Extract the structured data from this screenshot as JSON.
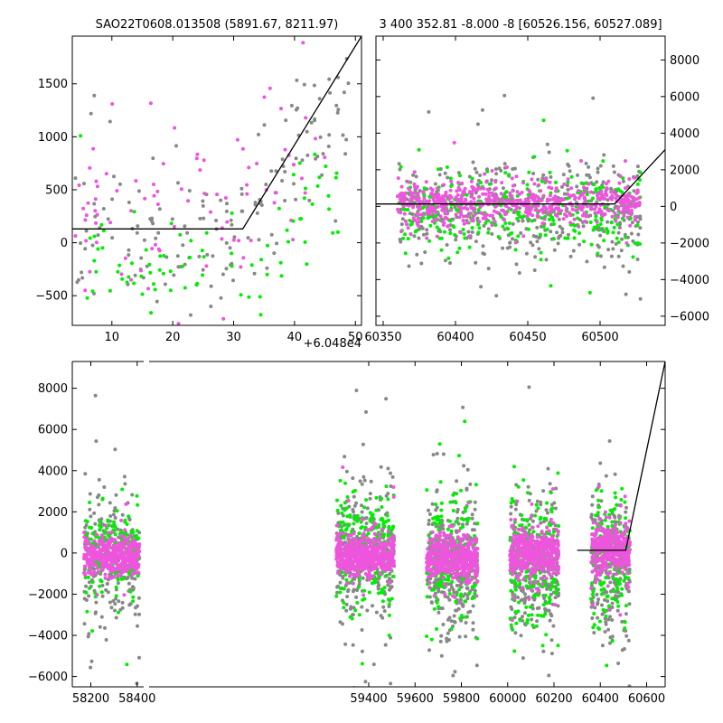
{
  "colors": {
    "gray": "#888888",
    "green": "#00ee00",
    "magenta": "#ee55dd",
    "line": "#000000"
  },
  "chart_data": [
    {
      "id": "top_left",
      "type": "scatter",
      "title": "SAO22T0608.013508 (5891.67, 8211.97)",
      "offset_label": "+6.048e4",
      "xlim": [
        3.5,
        51.0
      ],
      "ylim": [
        -780,
        1950
      ],
      "xticks": [
        10,
        20,
        30,
        40,
        50
      ],
      "yticks": [
        -500,
        0,
        500,
        1000,
        1500
      ],
      "tick_side": "left",
      "model_line": {
        "x": [
          3.5,
          31.5,
          51.0
        ],
        "y": [
          130,
          130,
          1950
        ]
      },
      "clouds": [
        {
          "name": "gray",
          "color_key": "gray",
          "n": 160,
          "seed": 11,
          "xrange": [
            4,
            49
          ],
          "ybase": 180,
          "spread": 340,
          "trend_start": 31.5,
          "trend_slope": 70
        },
        {
          "name": "magenta",
          "color_key": "magenta",
          "n": 90,
          "seed": 23,
          "xrange": [
            4,
            48
          ],
          "ybase": 280,
          "spread": 420,
          "trend_start": 31.5,
          "trend_slope": 60
        },
        {
          "name": "green",
          "color_key": "green",
          "n": 85,
          "seed": 37,
          "xrange": [
            4,
            48
          ],
          "ybase": -250,
          "spread": 260,
          "trend_start": 31.5,
          "trend_slope": 50
        }
      ]
    },
    {
      "id": "top_right",
      "type": "scatter",
      "title": "3 400 352.81 -8.000 -8 [60526.156, 60527.089]",
      "xlim": [
        60345,
        60545
      ],
      "ylim": [
        -6500,
        9300
      ],
      "xticks": [
        60350,
        60400,
        60450,
        60500
      ],
      "yticks": [
        -6000,
        -4000,
        -2000,
        0,
        2000,
        4000,
        6000,
        8000
      ],
      "tick_side": "right",
      "model_line": {
        "x": [
          60345,
          60510,
          60545
        ],
        "y": [
          130,
          130,
          3100
        ]
      },
      "clouds": [
        {
          "name": "gray",
          "color_key": "gray",
          "n": 420,
          "seed": 41,
          "xrange": [
            60360,
            60528
          ],
          "ybase": -300,
          "spread": 1400,
          "trend_start": 60510,
          "trend_slope": 0
        },
        {
          "name": "green",
          "color_key": "green",
          "n": 330,
          "seed": 53,
          "xrange": [
            60360,
            60528
          ],
          "ybase": -200,
          "spread": 1100,
          "trend_start": 60510,
          "trend_slope": 0
        },
        {
          "name": "magenta",
          "color_key": "magenta",
          "n": 620,
          "seed": 67,
          "xrange": [
            60360,
            60528
          ],
          "ybase": 150,
          "spread": 520,
          "trend_start": 60510,
          "trend_slope": 0
        }
      ]
    },
    {
      "id": "bottom",
      "type": "scatter",
      "xlim": [
        58120,
        60680
      ],
      "ylim": [
        -6500,
        9300
      ],
      "xticks": [
        58200,
        58400,
        59400,
        59600,
        59800,
        60000,
        60200,
        60400,
        60600
      ],
      "yticks": [
        -6000,
        -4000,
        -2000,
        0,
        2000,
        4000,
        6000,
        8000
      ],
      "tick_side": "left",
      "axis_gap": [
        58440,
        58800
      ],
      "model_line": {
        "x": [
          60300,
          60510,
          60680
        ],
        "y": [
          130,
          130,
          9300
        ]
      },
      "clouds": [
        {
          "name": "gray-1",
          "color_key": "gray",
          "n": 240,
          "seed": 101,
          "xrange": [
            58170,
            58410
          ],
          "ybase": -300,
          "spread": 1500,
          "trend_start": 99999,
          "trend_slope": 0
        },
        {
          "name": "green-1",
          "color_key": "green",
          "n": 180,
          "seed": 103,
          "xrange": [
            58170,
            58410
          ],
          "ybase": 100,
          "spread": 1100,
          "trend_start": 99999,
          "trend_slope": 0
        },
        {
          "name": "magenta-1",
          "color_key": "magenta",
          "n": 420,
          "seed": 107,
          "xrange": [
            58170,
            58410
          ],
          "ybase": -150,
          "spread": 450,
          "trend_start": 99999,
          "trend_slope": 0
        },
        {
          "name": "gray-2",
          "color_key": "gray",
          "n": 300,
          "seed": 109,
          "xrange": [
            59260,
            59510
          ],
          "ybase": -100,
          "spread": 1600,
          "trend_start": 99999,
          "trend_slope": 0
        },
        {
          "name": "green-2",
          "color_key": "green",
          "n": 220,
          "seed": 113,
          "xrange": [
            59260,
            59510
          ],
          "ybase": 100,
          "spread": 1300,
          "trend_start": 99999,
          "trend_slope": 0
        },
        {
          "name": "magenta-2",
          "color_key": "magenta",
          "n": 520,
          "seed": 127,
          "xrange": [
            59260,
            59510
          ],
          "ybase": -100,
          "spread": 500,
          "trend_start": 99999,
          "trend_slope": 0
        },
        {
          "name": "gray-3",
          "color_key": "gray",
          "n": 300,
          "seed": 131,
          "xrange": [
            59650,
            59870
          ],
          "ybase": -600,
          "spread": 1800,
          "trend_start": 99999,
          "trend_slope": 0
        },
        {
          "name": "green-3",
          "color_key": "green",
          "n": 200,
          "seed": 137,
          "xrange": [
            59650,
            59870
          ],
          "ybase": -200,
          "spread": 1500,
          "trend_start": 99999,
          "trend_slope": 0
        },
        {
          "name": "magenta-3",
          "color_key": "magenta",
          "n": 480,
          "seed": 139,
          "xrange": [
            59650,
            59870
          ],
          "ybase": -300,
          "spread": 500,
          "trend_start": 99999,
          "trend_slope": 0
        },
        {
          "name": "gray-4",
          "color_key": "gray",
          "n": 300,
          "seed": 149,
          "xrange": [
            60010,
            60220
          ],
          "ybase": -700,
          "spread": 1700,
          "trend_start": 99999,
          "trend_slope": 0
        },
        {
          "name": "green-4",
          "color_key": "green",
          "n": 200,
          "seed": 151,
          "xrange": [
            60010,
            60220
          ],
          "ybase": -300,
          "spread": 1500,
          "trend_start": 99999,
          "trend_slope": 0
        },
        {
          "name": "magenta-4",
          "color_key": "magenta",
          "n": 460,
          "seed": 157,
          "xrange": [
            60010,
            60220
          ],
          "ybase": 0,
          "spread": 550,
          "trend_start": 99999,
          "trend_slope": 0
        },
        {
          "name": "gray-5",
          "color_key": "gray",
          "n": 240,
          "seed": 163,
          "xrange": [
            60360,
            60528
          ],
          "ybase": -700,
          "spread": 1800,
          "trend_start": 99999,
          "trend_slope": 0
        },
        {
          "name": "green-5",
          "color_key": "green",
          "n": 180,
          "seed": 167,
          "xrange": [
            60360,
            60528
          ],
          "ybase": -200,
          "spread": 1400,
          "trend_start": 99999,
          "trend_slope": 0
        },
        {
          "name": "magenta-5",
          "color_key": "magenta",
          "n": 380,
          "seed": 173,
          "xrange": [
            60360,
            60528
          ],
          "ybase": 200,
          "spread": 600,
          "trend_start": 99999,
          "trend_slope": 0
        }
      ]
    }
  ]
}
